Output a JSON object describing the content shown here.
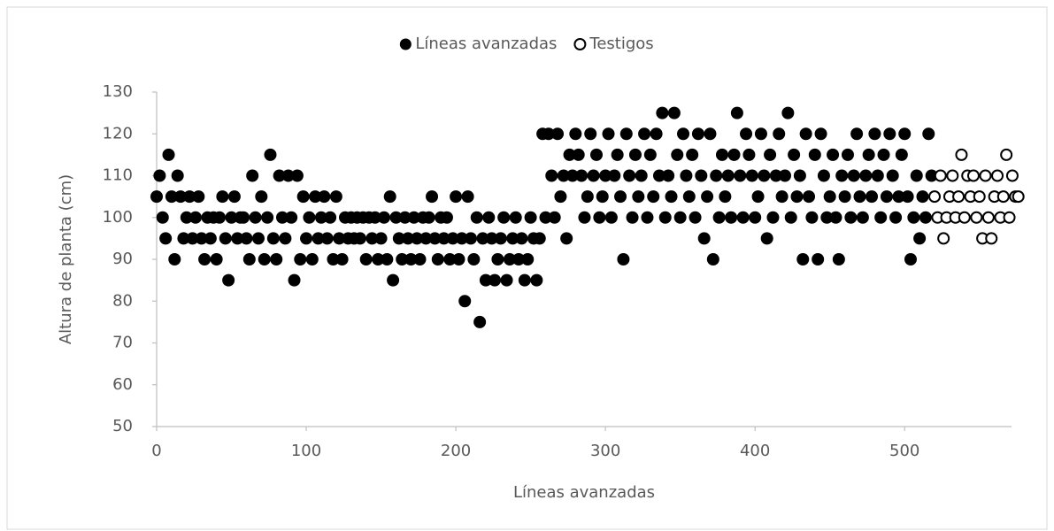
{
  "chart_data": {
    "type": "scatter",
    "xlabel": "Líneas avanzadas",
    "ylabel": "Altura de planta (cm)",
    "xlim": [
      0,
      575
    ],
    "ylim": [
      50,
      130
    ],
    "xticks": [
      0,
      100,
      200,
      300,
      400,
      500
    ],
    "yticks": [
      50,
      60,
      70,
      80,
      90,
      100,
      110,
      120,
      130
    ],
    "grid": false,
    "legend": "top",
    "series": [
      {
        "name": "Líneas avanzadas",
        "color": "#000000",
        "marker": "filled",
        "x": [
          0,
          2,
          4,
          6,
          8,
          10,
          12,
          14,
          16,
          18,
          20,
          22,
          24,
          26,
          28,
          30,
          32,
          34,
          36,
          38,
          40,
          42,
          44,
          46,
          48,
          50,
          52,
          54,
          56,
          58,
          60,
          62,
          64,
          66,
          68,
          70,
          72,
          74,
          76,
          78,
          80,
          82,
          84,
          86,
          88,
          90,
          92,
          94,
          96,
          98,
          100,
          102,
          104,
          106,
          108,
          110,
          112,
          114,
          116,
          118,
          120,
          122,
          124,
          126,
          128,
          130,
          132,
          134,
          136,
          138,
          140,
          142,
          144,
          146,
          148,
          150,
          152,
          154,
          156,
          158,
          160,
          162,
          164,
          166,
          168,
          170,
          172,
          174,
          176,
          178,
          180,
          182,
          184,
          186,
          188,
          190,
          192,
          194,
          196,
          198,
          200,
          202,
          204,
          206,
          208,
          210,
          212,
          214,
          216,
          218,
          220,
          222,
          224,
          226,
          228,
          230,
          232,
          234,
          236,
          238,
          240,
          242,
          244,
          246,
          248,
          250,
          252,
          254,
          256,
          258,
          260,
          262,
          264,
          266,
          268,
          270,
          272,
          274,
          276,
          278,
          280,
          282,
          284,
          286,
          288,
          290,
          292,
          294,
          296,
          298,
          300,
          302,
          304,
          306,
          308,
          310,
          312,
          314,
          316,
          318,
          320,
          322,
          324,
          326,
          328,
          330,
          332,
          334,
          336,
          338,
          340,
          342,
          344,
          346,
          348,
          350,
          352,
          354,
          356,
          358,
          360,
          362,
          364,
          366,
          368,
          370,
          372,
          374,
          376,
          378,
          380,
          382,
          384,
          386,
          388,
          390,
          392,
          394,
          396,
          398,
          400,
          402,
          404,
          406,
          408,
          410,
          412,
          414,
          416,
          418,
          420,
          422,
          424,
          426,
          428,
          430,
          432,
          434,
          436,
          438,
          440,
          442,
          444,
          446,
          448,
          450,
          452,
          454,
          456,
          458,
          460,
          462,
          464,
          466,
          468,
          470,
          472,
          474,
          476,
          478,
          480,
          482,
          484,
          486,
          488,
          490,
          492,
          494,
          496,
          498,
          500,
          502,
          504,
          506,
          508,
          510,
          512,
          514,
          516,
          518
        ],
        "values": [
          105,
          110,
          100,
          95,
          115,
          105,
          90,
          110,
          105,
          95,
          100,
          105,
          95,
          100,
          105,
          95,
          90,
          100,
          95,
          100,
          90,
          100,
          105,
          95,
          85,
          100,
          105,
          95,
          100,
          100,
          95,
          90,
          110,
          100,
          95,
          105,
          90,
          100,
          115,
          95,
          90,
          110,
          100,
          95,
          110,
          100,
          85,
          110,
          90,
          105,
          95,
          100,
          90,
          105,
          95,
          100,
          105,
          95,
          100,
          90,
          105,
          95,
          90,
          100,
          95,
          100,
          95,
          100,
          95,
          100,
          90,
          100,
          95,
          100,
          90,
          95,
          100,
          90,
          105,
          85,
          100,
          95,
          90,
          100,
          95,
          90,
          100,
          95,
          90,
          100,
          95,
          100,
          105,
          95,
          90,
          100,
          95,
          100,
          90,
          95,
          105,
          90,
          95,
          80,
          105,
          95,
          90,
          100,
          75,
          95,
          85,
          100,
          95,
          85,
          90,
          95,
          100,
          85,
          90,
          95,
          100,
          90,
          95,
          85,
          90,
          100,
          95,
          85,
          95,
          120,
          100,
          120,
          110,
          100,
          120,
          105,
          110,
          95,
          115,
          110,
          120,
          115,
          110,
          100,
          105,
          120,
          110,
          115,
          100,
          105,
          110,
          120,
          100,
          110,
          115,
          105,
          90,
          120,
          110,
          100,
          115,
          105,
          110,
          120,
          100,
          115,
          105,
          120,
          110,
          125,
          100,
          110,
          105,
          125,
          115,
          100,
          120,
          110,
          105,
          115,
          100,
          120,
          110,
          95,
          105,
          120,
          90,
          110,
          100,
          115,
          105,
          110,
          100,
          115,
          125,
          110,
          100,
          120,
          115,
          110,
          100,
          105,
          120,
          110,
          95,
          115,
          100,
          110,
          120,
          105,
          110,
          125,
          100,
          115,
          105,
          110,
          90,
          120,
          105,
          100,
          115,
          90,
          120,
          110,
          100,
          105,
          115,
          100,
          90,
          110,
          105,
          115,
          100,
          110,
          120,
          105,
          100,
          110,
          115,
          105,
          120,
          110,
          100,
          115,
          105,
          120,
          110,
          100,
          105,
          115,
          120,
          105,
          90,
          100,
          110,
          95,
          105,
          100,
          120,
          110
        ]
      },
      {
        "name": "Testigos",
        "color": "#000000",
        "marker": "open",
        "x": [
          520,
          522,
          524,
          526,
          528,
          530,
          532,
          534,
          536,
          538,
          540,
          542,
          544,
          546,
          548,
          550,
          552,
          554,
          556,
          558,
          560,
          562,
          564,
          566,
          568,
          570,
          572,
          574,
          576
        ],
        "values": [
          105,
          100,
          110,
          95,
          100,
          105,
          110,
          100,
          105,
          115,
          100,
          110,
          105,
          110,
          100,
          105,
          95,
          110,
          100,
          95,
          105,
          110,
          100,
          105,
          115,
          100,
          110,
          105,
          105
        ]
      }
    ]
  }
}
